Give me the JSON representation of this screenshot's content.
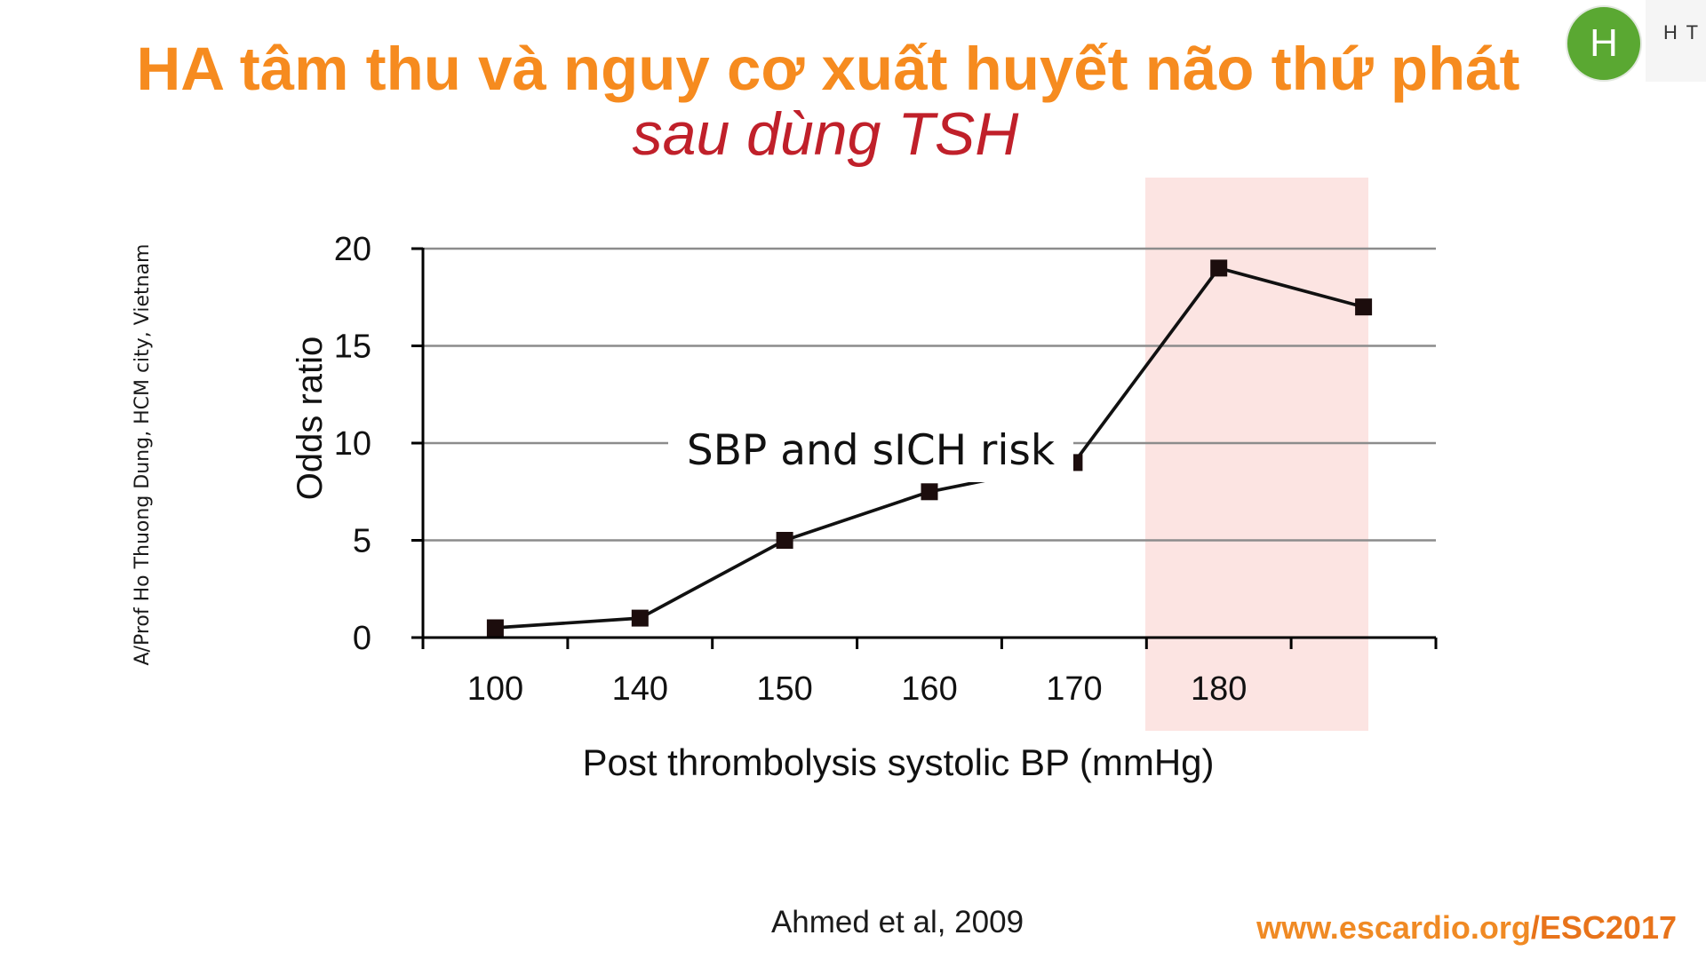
{
  "slide": {
    "title": "HA tâm thu và nguy cơ xuất huyết não thứ phát",
    "subtitle": "sau dùng TSH",
    "presenter_credit": "A/Prof Ho Thuong Dung, HCM city, Vietnam",
    "citation": "Ahmed et al, 2009",
    "url": {
      "domain": "www.escardio.org",
      "path": "/ESC2017"
    },
    "colors": {
      "title": "#f68b1f",
      "subtitle": "#c0202a",
      "url_domain": "#f08a24",
      "url_path": "#e8731a"
    }
  },
  "participant": {
    "avatar_initial": "H",
    "label": "H T",
    "avatar_color": "#5aa832"
  },
  "chart_data": {
    "type": "line",
    "categories": [
      "100",
      "140",
      "150",
      "160",
      "170",
      "180",
      ""
    ],
    "series": [
      {
        "values": [
          0.5,
          1,
          5,
          7.5,
          9,
          19,
          17
        ]
      }
    ],
    "xlabel": "Post thrombolysis systolic BP (mmHg)",
    "ylabel": "Odds ratio",
    "ylim": [
      0,
      20
    ],
    "yticks": [
      0,
      5,
      10,
      15,
      20
    ],
    "grid": true,
    "annotation": "SBP and sICH risk",
    "marker": "square",
    "highlight": {
      "category_indices": [
        5,
        6
      ],
      "color": "#fce4e2"
    },
    "colors": {
      "line": "#111111",
      "marker": "#1c0d0d",
      "grid": "#8c8c8c",
      "axis": "#000000"
    }
  }
}
